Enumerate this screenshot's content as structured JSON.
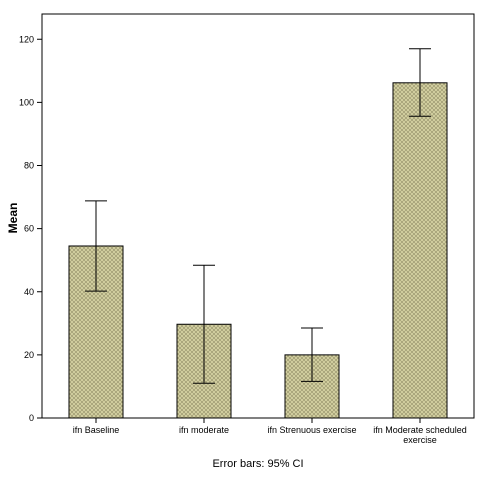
{
  "chart_data": {
    "type": "bar",
    "categories": [
      [
        "ifn Baseline"
      ],
      [
        "ifn moderate"
      ],
      [
        "ifn Strenuous exercise"
      ],
      [
        "ifn Moderate scheduled",
        "exercise"
      ]
    ],
    "values": [
      54.5,
      29.7,
      20.0,
      106.2
    ],
    "error_low": [
      40.2,
      11.0,
      11.6,
      95.6
    ],
    "error_high": [
      68.8,
      48.4,
      28.5,
      117.0
    ],
    "ylabel": "Mean",
    "ylim": [
      0,
      128
    ],
    "yticks": [
      0,
      20,
      40,
      60,
      80,
      100,
      120
    ],
    "footnote": "Error bars: 95% CI",
    "grid": false,
    "colors": {
      "bar_fill": "#d7d4a4",
      "bar_hatch": "#9c9870",
      "bar_stroke": "#000000",
      "axis": "#000000"
    }
  }
}
